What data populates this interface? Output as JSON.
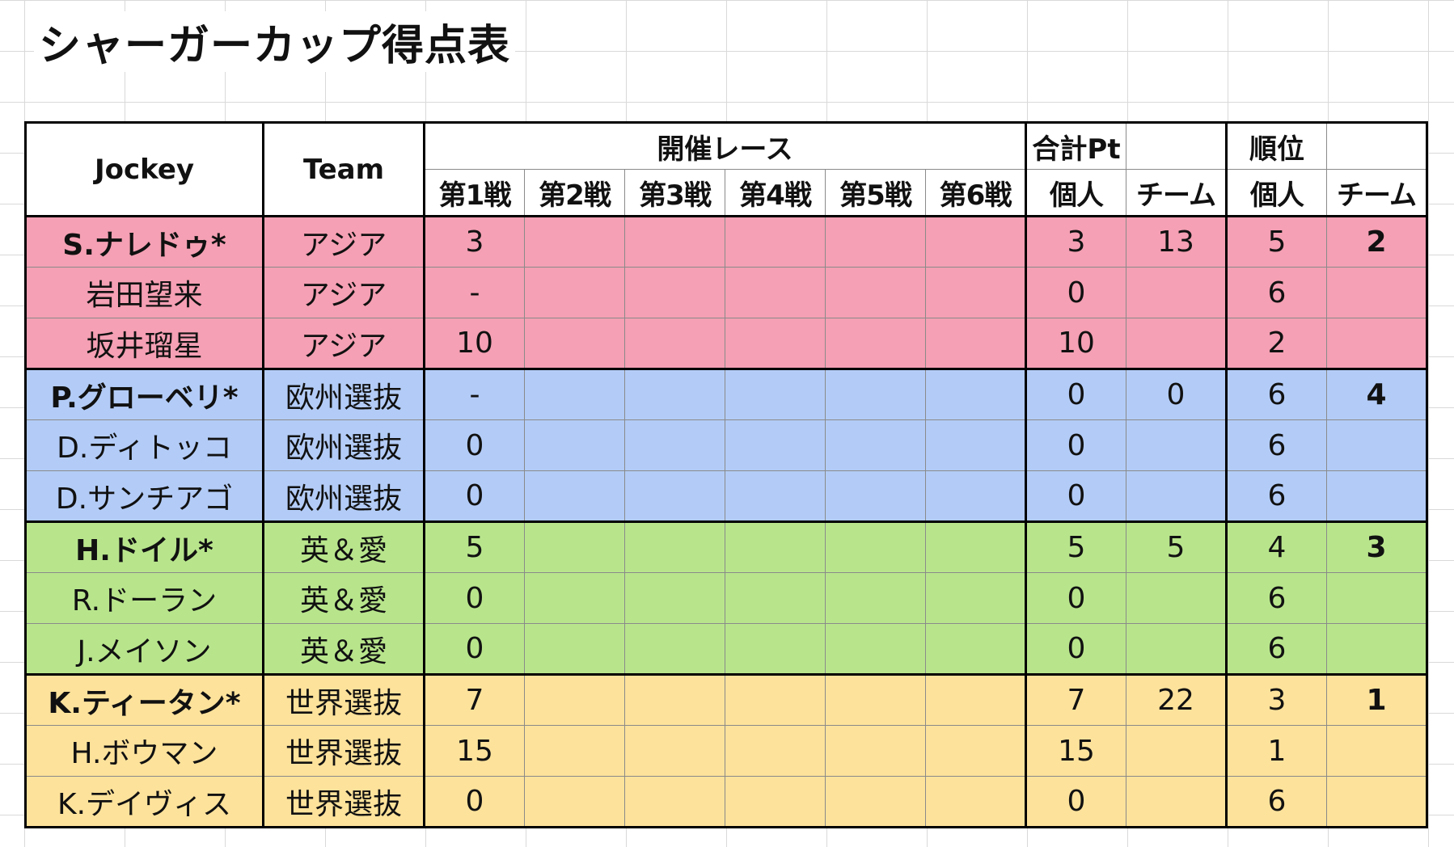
{
  "title": "シャーガーカップ得点表",
  "headers": {
    "jockey": "Jockey",
    "team": "Team",
    "races": "開催レース",
    "total": "合計Pt",
    "rank": "順位",
    "race_cols": [
      "第1戦",
      "第2戦",
      "第3戦",
      "第4戦",
      "第5戦",
      "第6戦"
    ],
    "total_individual": "個人",
    "total_team": "チーム",
    "rank_individual": "個人",
    "rank_team": "チーム"
  },
  "colors": {
    "asia": "#f5a0b4",
    "europe": "#b3ccf7",
    "uk_ireland": "#b8e58c",
    "world": "#fde29b"
  },
  "rows": [
    {
      "jockey": "S.ナレドゥ*",
      "team": "アジア",
      "races": [
        "3",
        "",
        "",
        "",
        "",
        ""
      ],
      "total_individual": "3",
      "total_team": "13",
      "rank_individual": "5",
      "rank_team": "2",
      "captain": true,
      "group": "asia"
    },
    {
      "jockey": "岩田望来",
      "team": "アジア",
      "races": [
        "-",
        "",
        "",
        "",
        "",
        ""
      ],
      "total_individual": "0",
      "total_team": "",
      "rank_individual": "6",
      "rank_team": "",
      "captain": false,
      "group": "asia"
    },
    {
      "jockey": "坂井瑠星",
      "team": "アジア",
      "races": [
        "10",
        "",
        "",
        "",
        "",
        ""
      ],
      "total_individual": "10",
      "total_team": "",
      "rank_individual": "2",
      "rank_team": "",
      "captain": false,
      "group": "asia"
    },
    {
      "jockey": "P.グローベリ*",
      "team": "欧州選抜",
      "races": [
        "-",
        "",
        "",
        "",
        "",
        ""
      ],
      "total_individual": "0",
      "total_team": "0",
      "rank_individual": "6",
      "rank_team": "4",
      "captain": true,
      "group": "europe"
    },
    {
      "jockey": "D.ディトッコ",
      "team": "欧州選抜",
      "races": [
        "0",
        "",
        "",
        "",
        "",
        ""
      ],
      "total_individual": "0",
      "total_team": "",
      "rank_individual": "6",
      "rank_team": "",
      "captain": false,
      "group": "europe"
    },
    {
      "jockey": "D.サンチアゴ",
      "team": "欧州選抜",
      "races": [
        "0",
        "",
        "",
        "",
        "",
        ""
      ],
      "total_individual": "0",
      "total_team": "",
      "rank_individual": "6",
      "rank_team": "",
      "captain": false,
      "group": "europe"
    },
    {
      "jockey": "H.ドイル*",
      "team": "英＆愛",
      "races": [
        "5",
        "",
        "",
        "",
        "",
        ""
      ],
      "total_individual": "5",
      "total_team": "5",
      "rank_individual": "4",
      "rank_team": "3",
      "captain": true,
      "group": "uk_ireland"
    },
    {
      "jockey": "R.ドーラン",
      "team": "英＆愛",
      "races": [
        "0",
        "",
        "",
        "",
        "",
        ""
      ],
      "total_individual": "0",
      "total_team": "",
      "rank_individual": "6",
      "rank_team": "",
      "captain": false,
      "group": "uk_ireland"
    },
    {
      "jockey": "J.メイソン",
      "team": "英＆愛",
      "races": [
        "0",
        "",
        "",
        "",
        "",
        ""
      ],
      "total_individual": "0",
      "total_team": "",
      "rank_individual": "6",
      "rank_team": "",
      "captain": false,
      "group": "uk_ireland"
    },
    {
      "jockey": "K.ティータン*",
      "team": "世界選抜",
      "races": [
        "7",
        "",
        "",
        "",
        "",
        ""
      ],
      "total_individual": "7",
      "total_team": "22",
      "rank_individual": "3",
      "rank_team": "1",
      "captain": true,
      "group": "world"
    },
    {
      "jockey": "H.ボウマン",
      "team": "世界選抜",
      "races": [
        "15",
        "",
        "",
        "",
        "",
        ""
      ],
      "total_individual": "15",
      "total_team": "",
      "rank_individual": "1",
      "rank_team": "",
      "captain": false,
      "group": "world"
    },
    {
      "jockey": "K.デイヴィス",
      "team": "世界選抜",
      "races": [
        "0",
        "",
        "",
        "",
        "",
        ""
      ],
      "total_individual": "0",
      "total_team": "",
      "rank_individual": "6",
      "rank_team": "",
      "captain": false,
      "group": "world"
    }
  ]
}
